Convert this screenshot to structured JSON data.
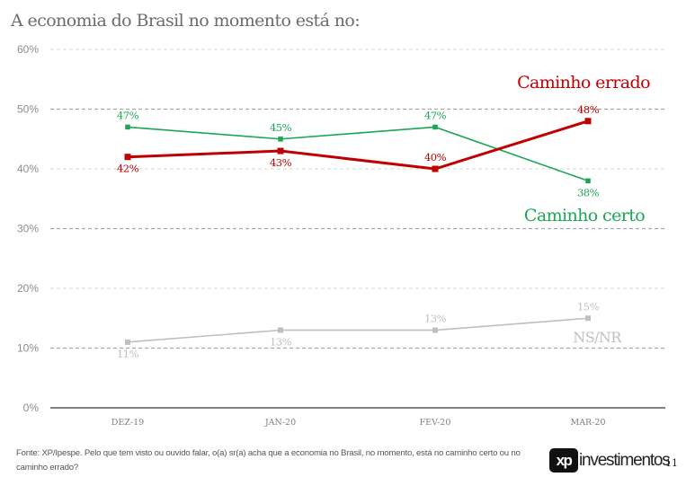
{
  "title": "A economia do Brasil no momento está no:",
  "footer": {
    "source": "Fonte: XP/Ipespe. Pelo que tem visto ou ouvido falar, o(a) sr(a) acha que a economia no Brasil, no momento, está no caminho certo ou no caminho errado?",
    "logo_mark": "xp",
    "logo_text": "investimentos",
    "page_number": "11"
  },
  "chart_data": {
    "type": "line",
    "title": "A economia do Brasil no momento está no:",
    "xlabel": "",
    "ylabel": "",
    "categories": [
      "DEZ-19",
      "JAN-20",
      "FEV-20",
      "MAR-20"
    ],
    "ylim": [
      0,
      60
    ],
    "yticks": [
      0,
      10,
      20,
      30,
      40,
      50,
      60
    ],
    "ytick_labels": [
      "0%",
      "10%",
      "20%",
      "30%",
      "40%",
      "50%",
      "60%"
    ],
    "grid": true,
    "legend": "inline labels near line ends",
    "series": [
      {
        "name": "Caminho errado",
        "color": "#c00000",
        "values": [
          42,
          43,
          40,
          48
        ],
        "labels": [
          "42%",
          "43%",
          "40%",
          "48%"
        ],
        "label_pos": [
          "below",
          "below",
          "above",
          "above"
        ]
      },
      {
        "name": "Caminho certo",
        "color": "#1aa652",
        "values": [
          47,
          45,
          47,
          38
        ],
        "labels": [
          "47%",
          "45%",
          "47%",
          "38%"
        ],
        "label_pos": [
          "above",
          "above",
          "above",
          "below"
        ]
      },
      {
        "name": "NS/NR",
        "color": "#bfbfbf",
        "values": [
          11,
          13,
          13,
          15
        ],
        "labels": [
          "11%",
          "13%",
          "13%",
          "15%"
        ],
        "label_pos": [
          "below",
          "below",
          "above",
          "above"
        ]
      }
    ]
  }
}
